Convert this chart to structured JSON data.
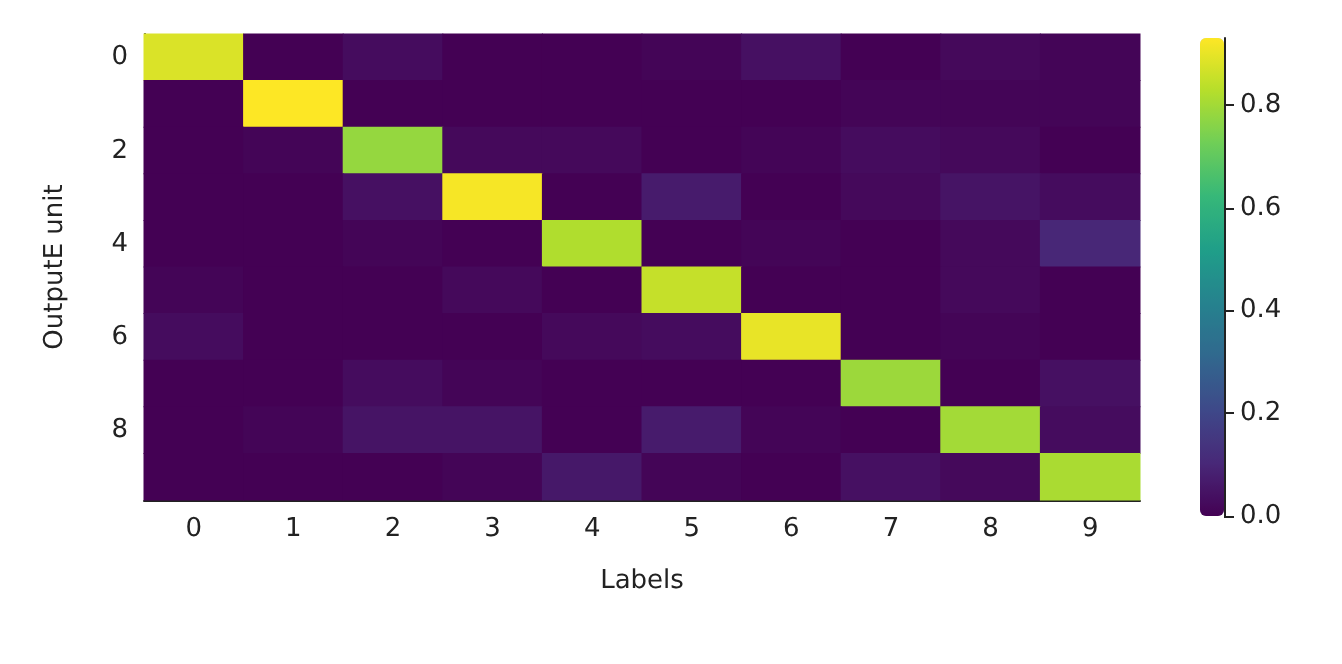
{
  "chart_data": {
    "type": "heatmap",
    "xlabel": "Labels",
    "ylabel": "OutputE unit",
    "categories": [
      "0",
      "1",
      "2",
      "3",
      "4",
      "5",
      "6",
      "7",
      "8",
      "9"
    ],
    "y_categories": [
      "0",
      null,
      "2",
      null,
      "4",
      null,
      "6",
      null,
      "8",
      null
    ],
    "cells": [
      [
        0.88,
        0.0,
        0.03,
        0.0,
        0.0,
        0.01,
        0.04,
        0.0,
        0.02,
        0.01
      ],
      [
        0.0,
        0.93,
        0.0,
        0.0,
        0.0,
        0.0,
        0.0,
        0.01,
        0.01,
        0.01
      ],
      [
        0.0,
        0.01,
        0.78,
        0.02,
        0.02,
        0.0,
        0.01,
        0.03,
        0.02,
        0.0
      ],
      [
        0.0,
        0.0,
        0.04,
        0.92,
        0.0,
        0.07,
        0.0,
        0.02,
        0.05,
        0.03
      ],
      [
        0.0,
        0.0,
        0.01,
        0.0,
        0.82,
        0.0,
        0.01,
        0.0,
        0.02,
        0.1
      ],
      [
        0.01,
        0.0,
        0.0,
        0.02,
        0.0,
        0.85,
        0.0,
        0.0,
        0.02,
        0.0
      ],
      [
        0.03,
        0.0,
        0.0,
        0.0,
        0.02,
        0.03,
        0.9,
        0.0,
        0.01,
        0.0
      ],
      [
        0.0,
        0.0,
        0.03,
        0.01,
        0.0,
        0.0,
        0.0,
        0.79,
        0.0,
        0.04
      ],
      [
        0.0,
        0.01,
        0.05,
        0.05,
        0.0,
        0.07,
        0.01,
        0.0,
        0.8,
        0.03
      ],
      [
        0.0,
        0.0,
        0.0,
        0.01,
        0.06,
        0.01,
        0.0,
        0.04,
        0.02,
        0.81
      ]
    ],
    "clim": [
      0,
      0.93
    ],
    "cticks": [
      {
        "value": 0,
        "label": "0.0"
      },
      0.2,
      0.4,
      0.6,
      0.8
    ]
  }
}
